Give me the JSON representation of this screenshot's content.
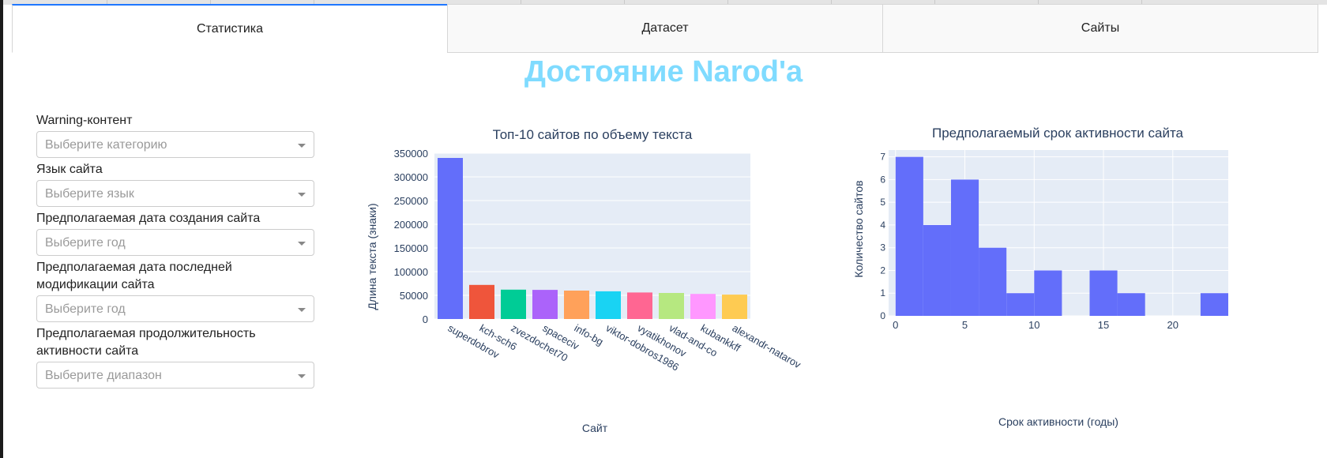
{
  "tabs": [
    {
      "label": "Статистика",
      "active": true
    },
    {
      "label": "Датасет",
      "active": false
    },
    {
      "label": "Сайты",
      "active": false
    }
  ],
  "page_title": "Достояние Narod'a",
  "filters": [
    {
      "label": "Warning-контент",
      "placeholder": "Выберите категорию"
    },
    {
      "label": "Язык сайта",
      "placeholder": "Выберите язык"
    },
    {
      "label": "Предполагаемая дата создания сайта",
      "placeholder": "Выберите год"
    },
    {
      "label": "Предполагаемая дата последней модификации сайта",
      "placeholder": "Выберите год"
    },
    {
      "label": "Предполагаемая продолжительность активности сайта",
      "placeholder": "Выберите диапазон"
    }
  ],
  "colors": {
    "title": "#7fdbff",
    "plot_bg": "#e5ecf6",
    "bar_palette": [
      "#636efa",
      "#ef553b",
      "#00cc96",
      "#ab63fa",
      "#ffa15a",
      "#19d3f3",
      "#ff6692",
      "#b6e880",
      "#ff97ff",
      "#fecb52"
    ]
  },
  "chart_data": [
    {
      "type": "bar",
      "title": "Топ-10 сайтов по объему текста",
      "xlabel": "Сайт",
      "ylabel": "Длина текста (знаки)",
      "categories": [
        "superdobrov",
        "kch-sch6",
        "zvezdochet70",
        "spaceciv",
        "info-bg",
        "viktor-dobros1986",
        "vyatikhonov",
        "vlad-and-co",
        "kubankkff",
        "alexandr-natarov"
      ],
      "values": [
        340000,
        72000,
        62000,
        61500,
        60000,
        58500,
        56000,
        55000,
        53000,
        51500
      ],
      "ylim": [
        0,
        350000
      ],
      "yticks": [
        0,
        50000,
        100000,
        150000,
        200000,
        250000,
        300000,
        350000
      ],
      "grid": true
    },
    {
      "type": "bar",
      "title": "Предполагаемый срок активности сайта",
      "xlabel": "Срок активности (годы)",
      "ylabel": "Количество сайтов",
      "bins": [
        {
          "x0": 0,
          "x1": 2,
          "count": 7
        },
        {
          "x0": 2,
          "x1": 4,
          "count": 4
        },
        {
          "x0": 4,
          "x1": 6,
          "count": 6
        },
        {
          "x0": 6,
          "x1": 8,
          "count": 3
        },
        {
          "x0": 8,
          "x1": 10,
          "count": 1
        },
        {
          "x0": 10,
          "x1": 12,
          "count": 2
        },
        {
          "x0": 12,
          "x1": 14,
          "count": 0
        },
        {
          "x0": 14,
          "x1": 16,
          "count": 2
        },
        {
          "x0": 16,
          "x1": 18,
          "count": 1
        },
        {
          "x0": 18,
          "x1": 20,
          "count": 0
        },
        {
          "x0": 20,
          "x1": 22,
          "count": 0
        },
        {
          "x0": 22,
          "x1": 24,
          "count": 1
        }
      ],
      "xlim": [
        -0.5,
        24
      ],
      "ylim": [
        0,
        7.3
      ],
      "xticks": [
        0,
        5,
        10,
        15,
        20
      ],
      "yticks": [
        0,
        1,
        2,
        3,
        4,
        5,
        6,
        7
      ],
      "grid": true
    }
  ]
}
